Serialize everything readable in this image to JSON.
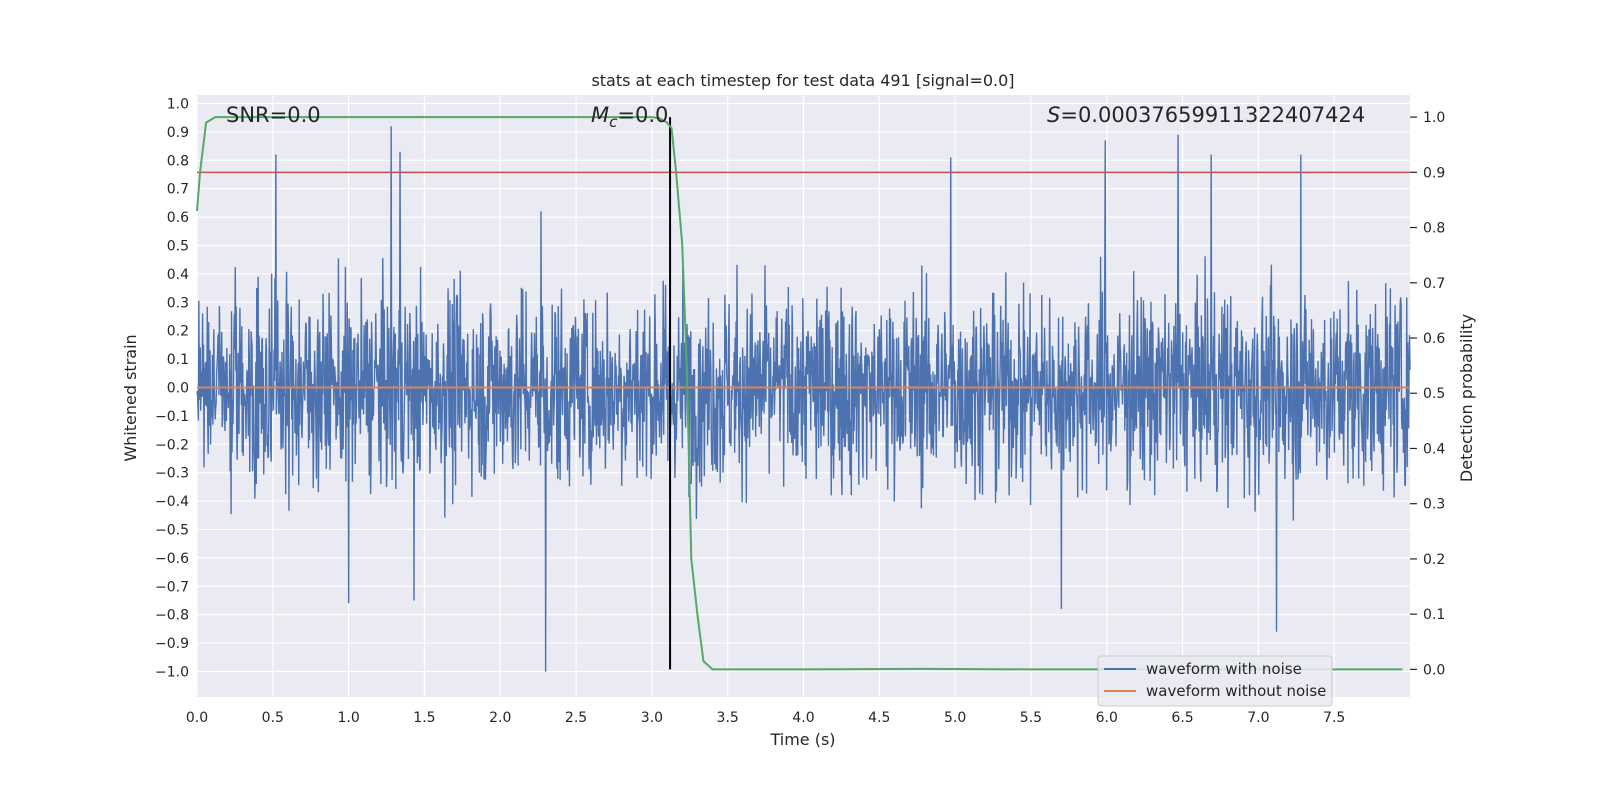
{
  "chart_data": {
    "type": "line",
    "title": "stats at each timestep for test data 491 [signal=0.0]",
    "xlabel": "Time (s)",
    "ylabel_left": "Whitened strain",
    "ylabel_right": "Detection probability",
    "xlim": [
      0.0,
      8.0
    ],
    "ylim_left": [
      -1.09,
      1.03
    ],
    "ylim_right": [
      -0.05,
      1.04
    ],
    "x_ticks": [
      "0.0",
      "0.5",
      "1.0",
      "1.5",
      "2.0",
      "2.5",
      "3.0",
      "3.5",
      "4.0",
      "4.5",
      "5.0",
      "5.5",
      "6.0",
      "6.5",
      "7.0",
      "7.5"
    ],
    "x_tick_values": [
      0.0,
      0.5,
      1.0,
      1.5,
      2.0,
      2.5,
      3.0,
      3.5,
      4.0,
      4.5,
      5.0,
      5.5,
      6.0,
      6.5,
      7.0,
      7.5
    ],
    "y_left_ticks": [
      "1.0",
      "0.9",
      "0.8",
      "0.7",
      "0.6",
      "0.5",
      "0.4",
      "0.3",
      "0.2",
      "0.1",
      "0.0",
      "−0.1",
      "−0.2",
      "−0.3",
      "−0.4",
      "−0.5",
      "−0.6",
      "−0.7",
      "−0.8",
      "−0.9",
      "−1.0"
    ],
    "y_left_tick_values": [
      1.0,
      0.9,
      0.8,
      0.7,
      0.6,
      0.5,
      0.4,
      0.3,
      0.2,
      0.1,
      0.0,
      -0.1,
      -0.2,
      -0.3,
      -0.4,
      -0.5,
      -0.6,
      -0.7,
      -0.8,
      -0.9,
      -1.0
    ],
    "y_right_ticks": [
      "1.0",
      "0.9",
      "0.8",
      "0.7",
      "0.6",
      "0.5",
      "0.4",
      "0.3",
      "0.2",
      "0.1",
      "0.0"
    ],
    "y_right_tick_values": [
      1.0,
      0.9,
      0.8,
      0.7,
      0.6,
      0.5,
      0.4,
      0.3,
      0.2,
      0.1,
      0.0
    ],
    "annotations": {
      "snr": "SNR=0.0",
      "mc_symbol": "M",
      "mc_sub": "c",
      "mc_value": "=0.0",
      "s_symbol": "S",
      "s_value": "=0.00037659911322407424"
    },
    "series": [
      {
        "name": "waveform with noise",
        "color": "#4c72b0",
        "description": "whitened strain noise, approx. within [-1.0, 0.92]",
        "peaks_high": [
          [
            0.52,
            0.82
          ],
          [
            1.28,
            0.92
          ],
          [
            1.34,
            0.83
          ],
          [
            2.27,
            0.62
          ],
          [
            4.97,
            0.81
          ],
          [
            5.99,
            0.87
          ],
          [
            6.47,
            0.89
          ],
          [
            6.69,
            0.82
          ],
          [
            7.28,
            0.82
          ]
        ],
        "peaks_low": [
          [
            2.3,
            -1.0
          ],
          [
            1.0,
            -0.76
          ],
          [
            1.43,
            -0.75
          ],
          [
            5.7,
            -0.78
          ],
          [
            7.12,
            -0.86
          ]
        ]
      },
      {
        "name": "waveform without noise",
        "color": "#dd8452",
        "y": 0.0
      },
      {
        "name": "detection probability",
        "color": "#55a868",
        "axis": "right",
        "x": [
          0.0,
          0.02,
          0.06,
          0.12,
          0.2,
          1.0,
          2.0,
          2.9,
          3.0,
          3.05,
          3.1,
          3.13,
          3.16,
          3.2,
          3.23,
          3.26,
          3.3,
          3.34,
          3.4,
          3.6,
          4.0,
          4.8,
          5.5,
          6.5,
          7.0,
          7.5,
          7.95
        ],
        "y": [
          0.83,
          0.9,
          0.99,
          1.0,
          1.0,
          1.0,
          1.0,
          1.0,
          1.0,
          0.998,
          0.99,
          0.98,
          0.9,
          0.77,
          0.55,
          0.2,
          0.1,
          0.015,
          0.0,
          0.0,
          0.0,
          0.001,
          0.0,
          0.0,
          0.0,
          0.0,
          0.0
        ]
      }
    ],
    "threshold": {
      "axis": "right",
      "value": 0.9,
      "color": "#c44e52"
    },
    "vertical_marker": {
      "x": 3.12,
      "color": "#000000"
    },
    "legend": {
      "position": "lower-right",
      "entries": [
        {
          "label": "waveform with noise",
          "color": "#4c72b0"
        },
        {
          "label": "waveform without noise",
          "color": "#dd8452"
        }
      ]
    }
  }
}
